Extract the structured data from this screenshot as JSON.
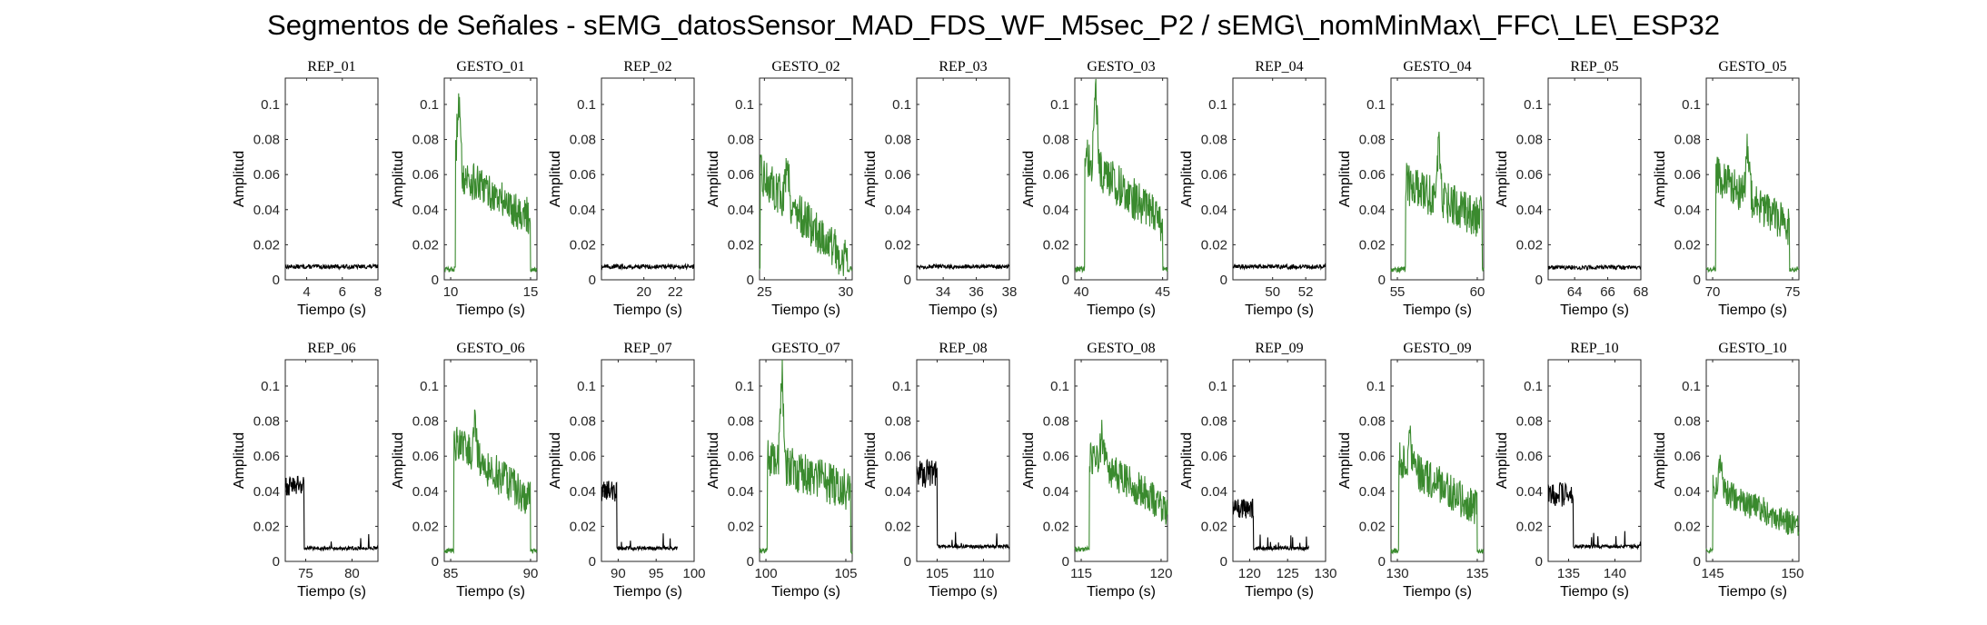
{
  "figure": {
    "title": "Segmentos de Señales - sEMG_datosSensor_MAD_FDS_WF_M5sec_P2 / sEMG\\_nomMinMax\\_FFC\\_LE\\_ESP32",
    "colors": {
      "rep": "#000000",
      "gesto": "#3a8a2e",
      "axis": "#262626"
    },
    "shared_axes": {
      "xlabel": "Tiempo (s)",
      "ylabel": "Amplitud",
      "ylim": [
        0,
        0.115
      ],
      "yticks": [
        0,
        0.02,
        0.04,
        0.06,
        0.08,
        0.1
      ],
      "ytick_labels": [
        "0",
        "0.02",
        "0.04",
        "0.06",
        "0.08",
        "0.1"
      ],
      "grid": false
    }
  },
  "chart_data": [
    {
      "type": "line",
      "title": "REP_01",
      "kind": "rep",
      "xlim": [
        2.8,
        8
      ],
      "xticks": [
        4,
        6,
        8
      ],
      "xtick_labels": [
        "4",
        "6",
        "8"
      ],
      "series": [
        {
          "name": "",
          "x": [
            2.8,
            8
          ],
          "profile": {
            "shape": "flat",
            "base": 0.0075,
            "noise": 0.0012
          }
        }
      ]
    },
    {
      "type": "line",
      "title": "GESTO_01",
      "kind": "gesto",
      "xlim": [
        9.6,
        15.4
      ],
      "xticks": [
        10,
        15
      ],
      "xtick_labels": [
        "10",
        "15"
      ],
      "series": [
        {
          "name": "",
          "x": [
            9.6,
            15.4
          ],
          "profile": {
            "shape": "burst",
            "start": 10.3,
            "end": 15.0,
            "peak": 0.103,
            "peak_at": 10.5,
            "level_start": 0.062,
            "level_end": 0.035,
            "base": 0.006,
            "noise": 0.011
          }
        }
      ]
    },
    {
      "type": "line",
      "title": "REP_02",
      "kind": "rep",
      "xlim": [
        17.3,
        23.2
      ],
      "xticks": [
        20,
        22
      ],
      "xtick_labels": [
        "20",
        "22"
      ],
      "series": [
        {
          "name": "",
          "x": [
            17.3,
            23.2
          ],
          "profile": {
            "shape": "flat",
            "base": 0.0075,
            "noise": 0.0012
          }
        }
      ]
    },
    {
      "type": "line",
      "title": "GESTO_02",
      "kind": "gesto",
      "xlim": [
        24.7,
        30.4
      ],
      "xticks": [
        25,
        30
      ],
      "xtick_labels": [
        "25",
        "30"
      ],
      "series": [
        {
          "name": "",
          "x": [
            24.7,
            30.4
          ],
          "profile": {
            "shape": "burst",
            "start": 24.75,
            "end": 30.1,
            "peak": 0.085,
            "peak_at": 26.4,
            "level_start": 0.06,
            "level_end": 0.01,
            "base": 0.006,
            "noise": 0.012
          }
        }
      ]
    },
    {
      "type": "line",
      "title": "REP_03",
      "kind": "rep",
      "xlim": [
        32.4,
        38
      ],
      "xticks": [
        34,
        36,
        38
      ],
      "xtick_labels": [
        "34",
        "36",
        "38"
      ],
      "series": [
        {
          "name": "",
          "x": [
            32.4,
            38
          ],
          "profile": {
            "shape": "flat",
            "base": 0.0075,
            "noise": 0.0012
          }
        }
      ]
    },
    {
      "type": "line",
      "title": "GESTO_03",
      "kind": "gesto",
      "xlim": [
        39.6,
        45.3
      ],
      "xticks": [
        40,
        45
      ],
      "xtick_labels": [
        "40",
        "45"
      ],
      "series": [
        {
          "name": "",
          "x": [
            39.6,
            45.3
          ],
          "profile": {
            "shape": "burst",
            "start": 40.2,
            "end": 45.0,
            "peak": 0.11,
            "peak_at": 40.9,
            "level_start": 0.07,
            "level_end": 0.033,
            "base": 0.006,
            "noise": 0.012
          }
        }
      ]
    },
    {
      "type": "line",
      "title": "REP_04",
      "kind": "rep",
      "xlim": [
        47.6,
        53.2
      ],
      "xticks": [
        50,
        52
      ],
      "xtick_labels": [
        "50",
        "52"
      ],
      "series": [
        {
          "name": "",
          "x": [
            47.6,
            53.2
          ],
          "profile": {
            "shape": "flat",
            "base": 0.0075,
            "noise": 0.0012
          }
        }
      ]
    },
    {
      "type": "line",
      "title": "GESTO_04",
      "kind": "gesto",
      "xlim": [
        54.6,
        60.4
      ],
      "xticks": [
        55,
        60
      ],
      "xtick_labels": [
        "55",
        "60"
      ],
      "series": [
        {
          "name": "",
          "x": [
            54.6,
            60.4
          ],
          "profile": {
            "shape": "burst",
            "start": 55.5,
            "end": 60.3,
            "peak": 0.085,
            "peak_at": 57.6,
            "level_start": 0.055,
            "level_end": 0.035,
            "base": 0.006,
            "noise": 0.012
          }
        }
      ]
    },
    {
      "type": "line",
      "title": "REP_05",
      "kind": "rep",
      "xlim": [
        62.4,
        68
      ],
      "xticks": [
        64,
        66,
        68
      ],
      "xtick_labels": [
        "64",
        "66",
        "68"
      ],
      "series": [
        {
          "name": "",
          "x": [
            62.4,
            68
          ],
          "profile": {
            "shape": "flat",
            "base": 0.007,
            "noise": 0.0012
          }
        }
      ]
    },
    {
      "type": "line",
      "title": "GESTO_05",
      "kind": "gesto",
      "xlim": [
        69.6,
        75.4
      ],
      "xticks": [
        70,
        75
      ],
      "xtick_labels": [
        "70",
        "75"
      ],
      "series": [
        {
          "name": "",
          "x": [
            69.6,
            75.4
          ],
          "profile": {
            "shape": "burst",
            "start": 70.2,
            "end": 74.8,
            "peak": 0.09,
            "peak_at": 72.2,
            "level_start": 0.06,
            "level_end": 0.03,
            "base": 0.006,
            "noise": 0.011
          }
        }
      ]
    },
    {
      "type": "line",
      "title": "REP_06",
      "kind": "rep",
      "xlim": [
        72.8,
        82.8
      ],
      "xticks": [
        75,
        80
      ],
      "xtick_labels": [
        "75",
        "80"
      ],
      "series": [
        {
          "name": "",
          "x": [
            72.8,
            82.8
          ],
          "profile": {
            "shape": "activity",
            "start": 72.8,
            "end": 74.8,
            "level": 0.043,
            "base": 0.0065,
            "noise": 0.006
          }
        }
      ]
    },
    {
      "type": "line",
      "title": "GESTO_06",
      "kind": "gesto",
      "xlim": [
        84.6,
        90.4
      ],
      "xticks": [
        85,
        90
      ],
      "xtick_labels": [
        "85",
        "90"
      ],
      "series": [
        {
          "name": "",
          "x": [
            84.6,
            90.4
          ],
          "profile": {
            "shape": "burst",
            "start": 85.2,
            "end": 90.0,
            "peak": 0.088,
            "peak_at": 86.5,
            "level_start": 0.068,
            "level_end": 0.035,
            "base": 0.006,
            "noise": 0.011
          }
        }
      ]
    },
    {
      "type": "line",
      "title": "REP_07",
      "kind": "rep",
      "xlim": [
        87.8,
        100
      ],
      "xticks": [
        90,
        95,
        100
      ],
      "xtick_labels": [
        "90",
        "95",
        "100"
      ],
      "series": [
        {
          "name": "",
          "x": [
            87.8,
            97.8
          ],
          "profile": {
            "shape": "activity",
            "start": 87.8,
            "end": 89.8,
            "level": 0.04,
            "base": 0.0065,
            "noise": 0.006
          }
        }
      ]
    },
    {
      "type": "line",
      "title": "GESTO_07",
      "kind": "gesto",
      "xlim": [
        99.6,
        105.4
      ],
      "xticks": [
        100,
        105
      ],
      "xtick_labels": [
        "100",
        "105"
      ],
      "series": [
        {
          "name": "",
          "x": [
            99.6,
            105.4
          ],
          "profile": {
            "shape": "burst",
            "start": 100.1,
            "end": 105.3,
            "peak": 0.11,
            "peak_at": 101.0,
            "level_start": 0.058,
            "level_end": 0.04,
            "base": 0.006,
            "noise": 0.012
          }
        }
      ]
    },
    {
      "type": "line",
      "title": "REP_08",
      "kind": "rep",
      "xlim": [
        102.8,
        112.8
      ],
      "xticks": [
        105,
        110
      ],
      "xtick_labels": [
        "105",
        "110"
      ],
      "series": [
        {
          "name": "",
          "x": [
            102.8,
            112.8
          ],
          "profile": {
            "shape": "activity",
            "start": 102.8,
            "end": 105.0,
            "level": 0.05,
            "base": 0.0075,
            "noise": 0.008
          }
        }
      ]
    },
    {
      "type": "line",
      "title": "GESTO_08",
      "kind": "gesto",
      "xlim": [
        114.6,
        120.4
      ],
      "xticks": [
        115,
        120
      ],
      "xtick_labels": [
        "115",
        "120"
      ],
      "series": [
        {
          "name": "",
          "x": [
            114.6,
            120.4
          ],
          "profile": {
            "shape": "burst",
            "start": 115.5,
            "end": 120.4,
            "peak": 0.076,
            "peak_at": 116.3,
            "level_start": 0.06,
            "level_end": 0.03,
            "base": 0.007,
            "noise": 0.01
          }
        }
      ]
    },
    {
      "type": "line",
      "title": "REP_09",
      "kind": "rep",
      "xlim": [
        117.8,
        130
      ],
      "xticks": [
        120,
        125,
        130
      ],
      "xtick_labels": [
        "120",
        "125",
        "130"
      ],
      "series": [
        {
          "name": "",
          "x": [
            117.8,
            127.8
          ],
          "profile": {
            "shape": "activity",
            "start": 117.8,
            "end": 120.5,
            "level": 0.03,
            "base": 0.0065,
            "noise": 0.006
          }
        }
      ]
    },
    {
      "type": "line",
      "title": "GESTO_09",
      "kind": "gesto",
      "xlim": [
        129.6,
        135.4
      ],
      "xticks": [
        130,
        135
      ],
      "xtick_labels": [
        "130",
        "135"
      ],
      "series": [
        {
          "name": "",
          "x": [
            129.6,
            135.4
          ],
          "profile": {
            "shape": "burst",
            "start": 130.1,
            "end": 135.0,
            "peak": 0.073,
            "peak_at": 130.8,
            "level_start": 0.058,
            "level_end": 0.03,
            "base": 0.006,
            "noise": 0.011
          }
        }
      ]
    },
    {
      "type": "line",
      "title": "REP_10",
      "kind": "rep",
      "xlim": [
        132.8,
        142.8
      ],
      "xticks": [
        135,
        140
      ],
      "xtick_labels": [
        "135",
        "140"
      ],
      "series": [
        {
          "name": "",
          "x": [
            132.8,
            142.8
          ],
          "profile": {
            "shape": "activity",
            "start": 132.8,
            "end": 135.5,
            "level": 0.038,
            "base": 0.0075,
            "noise": 0.007
          }
        }
      ]
    },
    {
      "type": "line",
      "title": "GESTO_10",
      "kind": "gesto",
      "xlim": [
        144.6,
        150.4
      ],
      "xticks": [
        145,
        150
      ],
      "xtick_labels": [
        "145",
        "150"
      ],
      "series": [
        {
          "name": "",
          "x": [
            144.6,
            150.4
          ],
          "profile": {
            "shape": "burst",
            "start": 145.0,
            "end": 150.4,
            "peak": 0.058,
            "peak_at": 145.5,
            "level_start": 0.042,
            "level_end": 0.02,
            "base": 0.006,
            "noise": 0.008
          }
        }
      ]
    }
  ]
}
